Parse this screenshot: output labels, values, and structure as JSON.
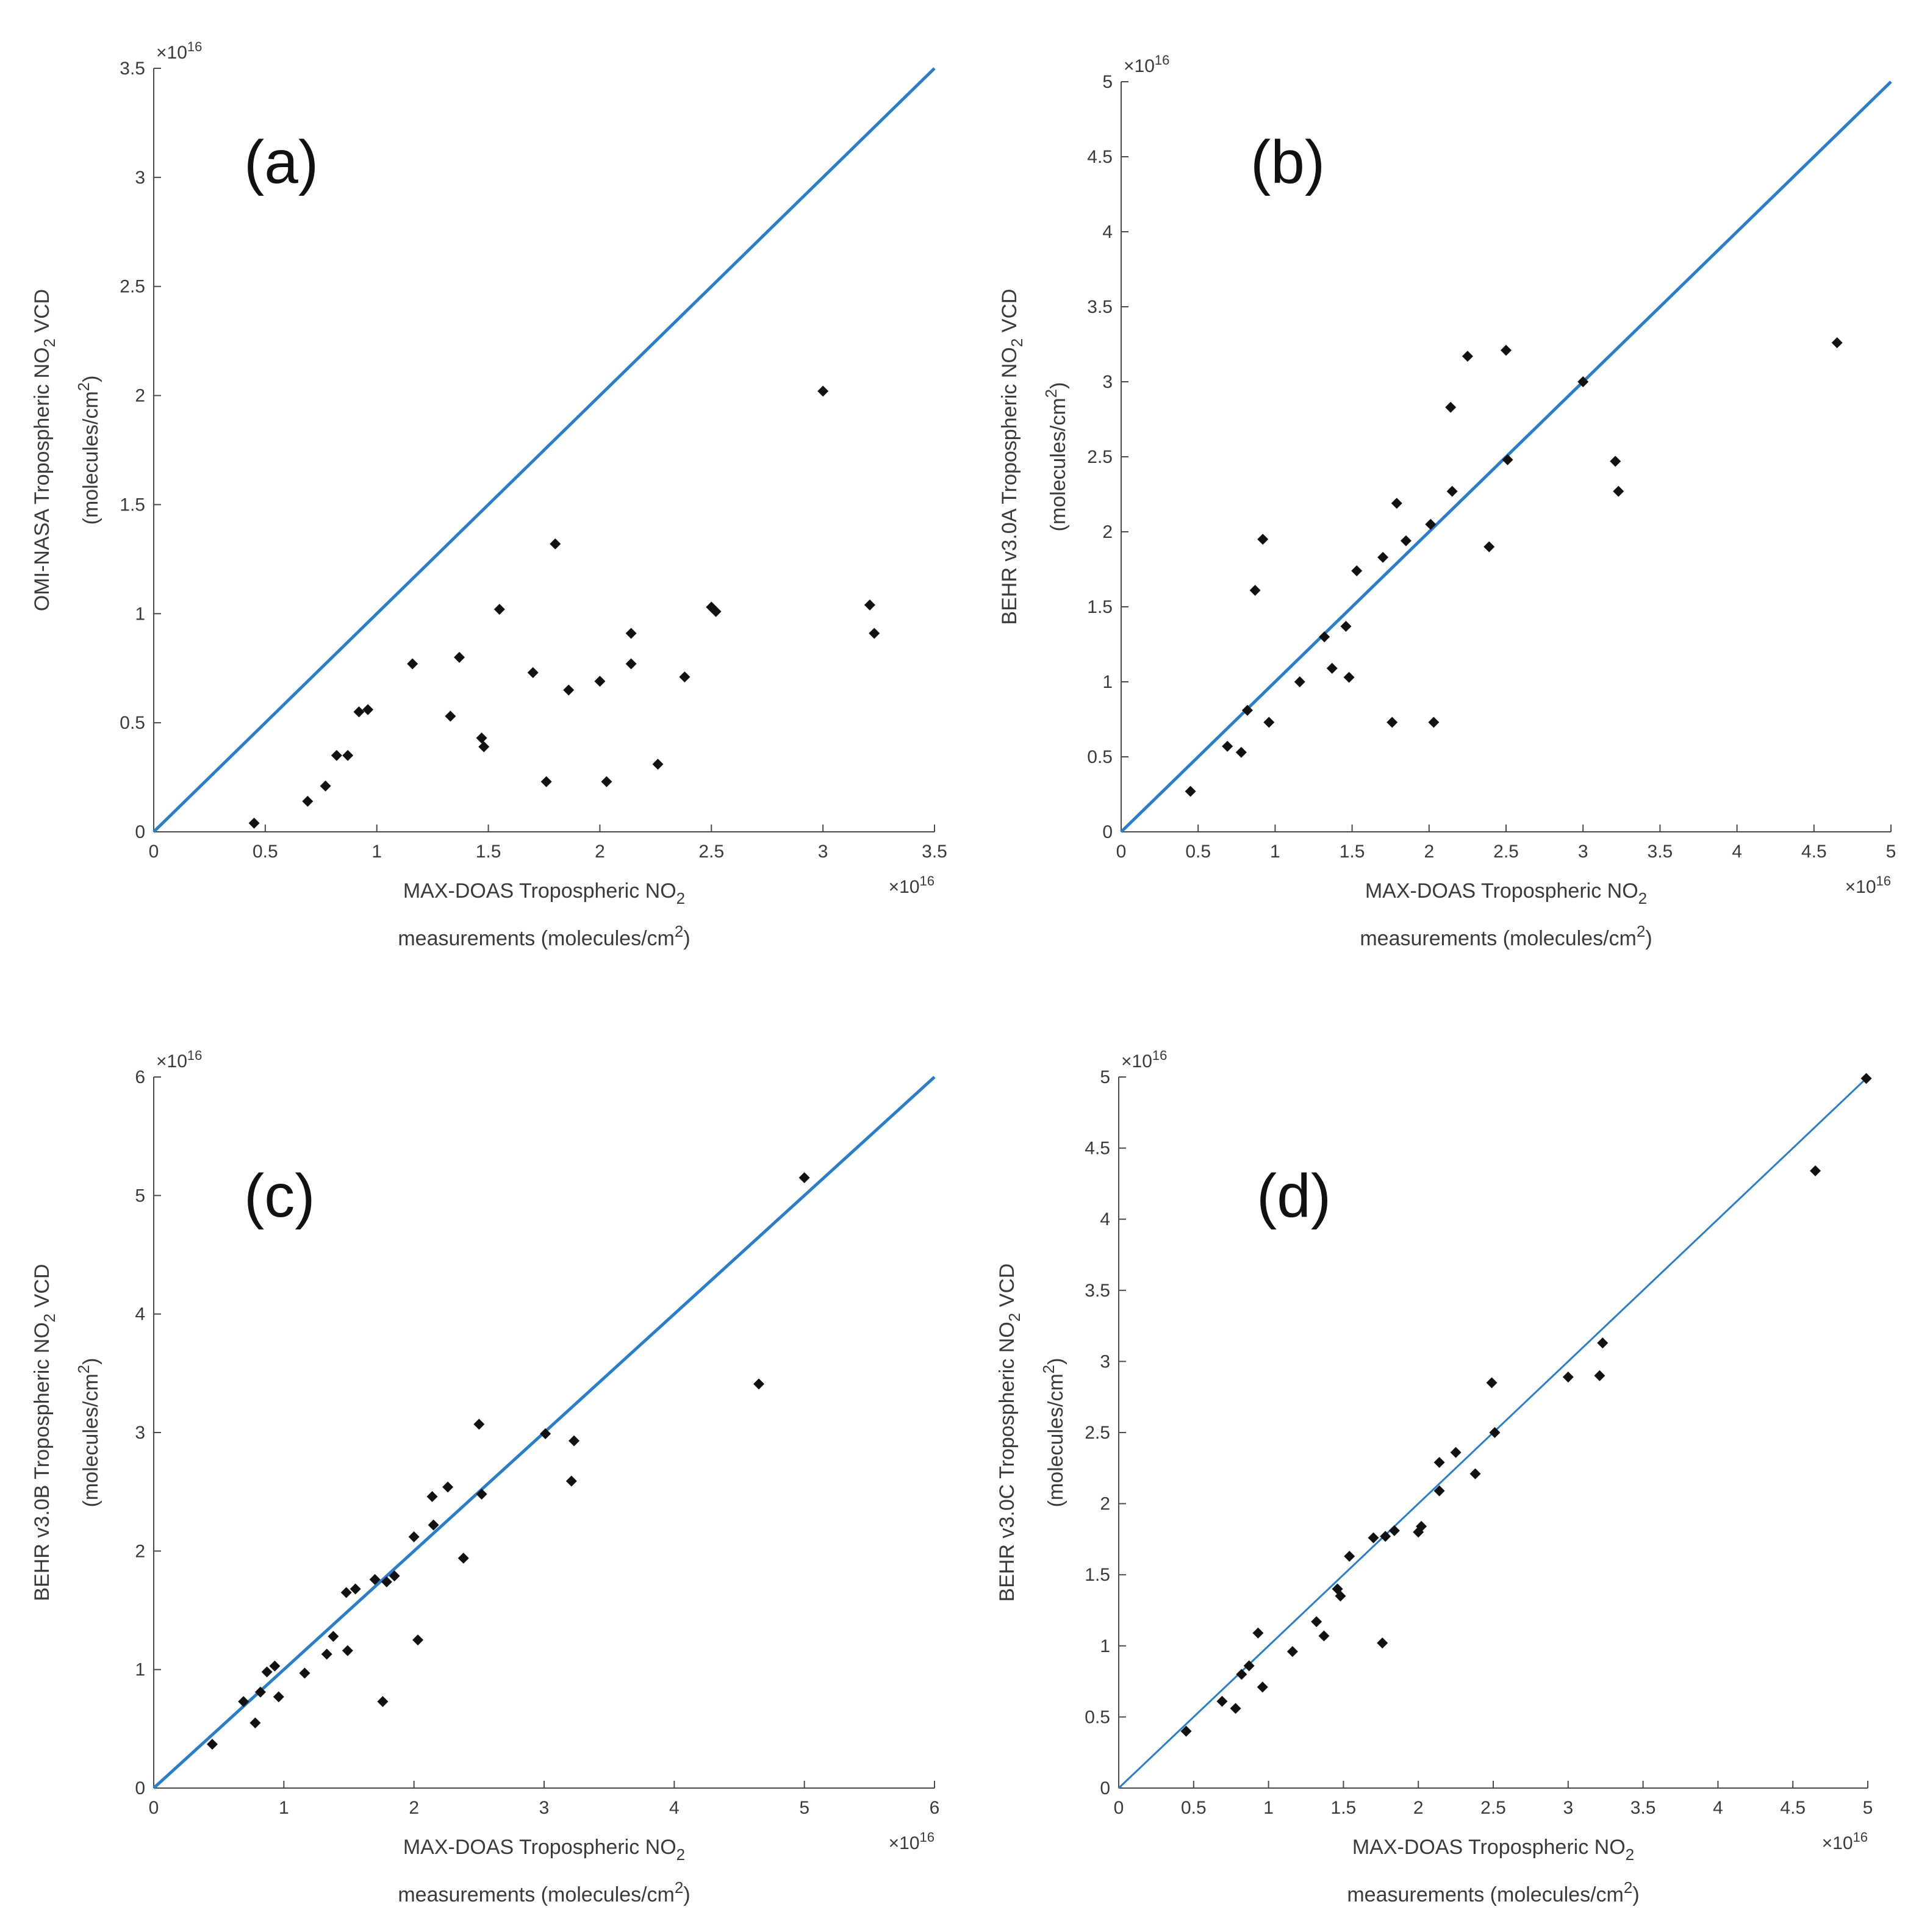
{
  "colors": {
    "identity_line": "#2a7dc9",
    "points": "#111111",
    "axis": "#4a4a4a",
    "text": "#3a3a3a"
  },
  "chart_data": [
    {
      "type": "scatter",
      "panel_label": "(a)",
      "xlabel_line1": "MAX-DOAS Tropospheric NO",
      "xlabel_line1_sub": "2",
      "xlabel_line2": "measurements (molecules/cm",
      "xlabel_line2_sup": "2",
      "xlabel_line2_end": ")",
      "ylabel_line1": "OMI-NASA Tropospheric NO",
      "ylabel_line1_sub": "2",
      "ylabel_line1_end": " VCD",
      "ylabel_line2": "(molecules/cm",
      "ylabel_line2_sup": "2",
      "ylabel_line2_end": ")",
      "x_exponent_base": "×10",
      "x_exponent_power": "16",
      "y_exponent_base": "×10",
      "y_exponent_power": "16",
      "xlim": [
        0,
        3.5
      ],
      "ylim": [
        0,
        3.5
      ],
      "xticks": [
        "0",
        "0.5",
        "1",
        "1.5",
        "2",
        "2.5",
        "3",
        "3.5"
      ],
      "yticks": [
        "0",
        "0.5",
        "1",
        "1.5",
        "2",
        "2.5",
        "3",
        "3.5"
      ],
      "identity_line": [
        0,
        3.5
      ],
      "points": [
        [
          0.45,
          0.04
        ],
        [
          0.69,
          0.14
        ],
        [
          0.77,
          0.21
        ],
        [
          0.82,
          0.35
        ],
        [
          0.87,
          0.35
        ],
        [
          0.92,
          0.55
        ],
        [
          0.96,
          0.56
        ],
        [
          1.16,
          0.77
        ],
        [
          1.33,
          0.53
        ],
        [
          1.37,
          0.8
        ],
        [
          1.47,
          0.43
        ],
        [
          1.48,
          0.39
        ],
        [
          1.55,
          1.02
        ],
        [
          1.7,
          0.73
        ],
        [
          1.76,
          0.23
        ],
        [
          1.8,
          1.32
        ],
        [
          1.86,
          0.65
        ],
        [
          2.0,
          0.69
        ],
        [
          2.03,
          0.23
        ],
        [
          2.14,
          0.91
        ],
        [
          2.14,
          0.77
        ],
        [
          2.26,
          0.31
        ],
        [
          2.38,
          0.71
        ],
        [
          2.5,
          1.03
        ],
        [
          2.52,
          1.01
        ],
        [
          3.0,
          2.02
        ],
        [
          3.21,
          1.04
        ],
        [
          3.23,
          0.91
        ]
      ]
    },
    {
      "type": "scatter",
      "panel_label": "(b)",
      "xlabel_line1": "MAX-DOAS Tropospheric NO",
      "xlabel_line1_sub": "2",
      "xlabel_line2": "measurements (molecules/cm",
      "xlabel_line2_sup": "2",
      "xlabel_line2_end": ")",
      "ylabel_line1": "BEHR v3.0A Tropospheric NO",
      "ylabel_line1_sub": "2",
      "ylabel_line1_end": " VCD",
      "ylabel_line2": "(molecules/cm",
      "ylabel_line2_sup": "2",
      "ylabel_line2_end": ")",
      "x_exponent_base": "×10",
      "x_exponent_power": "16",
      "y_exponent_base": "×10",
      "y_exponent_power": "16",
      "xlim": [
        0,
        5
      ],
      "ylim": [
        0,
        5
      ],
      "xticks": [
        "0",
        "0.5",
        "1",
        "1.5",
        "2",
        "2.5",
        "3",
        "3.5",
        "4",
        "4.5",
        "5"
      ],
      "yticks": [
        "0",
        "0.5",
        "1",
        "1.5",
        "2",
        "2.5",
        "3",
        "3.5",
        "4",
        "4.5",
        "5"
      ],
      "identity_line": [
        0,
        5
      ],
      "points": [
        [
          0.45,
          0.27
        ],
        [
          0.69,
          0.57
        ],
        [
          0.78,
          0.53
        ],
        [
          0.82,
          0.81
        ],
        [
          0.87,
          1.61
        ],
        [
          0.92,
          1.95
        ],
        [
          0.96,
          0.73
        ],
        [
          1.16,
          1.0
        ],
        [
          1.32,
          1.3
        ],
        [
          1.37,
          1.09
        ],
        [
          1.46,
          1.37
        ],
        [
          1.48,
          1.03
        ],
        [
          1.53,
          1.74
        ],
        [
          1.7,
          1.83
        ],
        [
          1.76,
          0.73
        ],
        [
          1.79,
          2.19
        ],
        [
          1.85,
          1.94
        ],
        [
          2.01,
          2.05
        ],
        [
          2.03,
          0.73
        ],
        [
          2.14,
          2.83
        ],
        [
          2.15,
          2.27
        ],
        [
          2.25,
          3.17
        ],
        [
          2.39,
          1.9
        ],
        [
          2.5,
          3.21
        ],
        [
          2.51,
          2.48
        ],
        [
          3.0,
          3.0
        ],
        [
          3.21,
          2.47
        ],
        [
          3.23,
          2.27
        ],
        [
          4.65,
          3.26
        ]
      ]
    },
    {
      "type": "scatter",
      "panel_label": "(c)",
      "xlabel_line1": "MAX-DOAS Tropospheric NO",
      "xlabel_line1_sub": "2",
      "xlabel_line2": "measurements (molecules/cm",
      "xlabel_line2_sup": "2",
      "xlabel_line2_end": ")",
      "ylabel_line1": "BEHR v3.0B Tropospheric NO",
      "ylabel_line1_sub": "2",
      "ylabel_line1_end": " VCD",
      "ylabel_line2": "(molecules/cm",
      "ylabel_line2_sup": "2",
      "ylabel_line2_end": ")",
      "x_exponent_base": "×10",
      "x_exponent_power": "16",
      "y_exponent_base": "×10",
      "y_exponent_power": "16",
      "xlim": [
        0,
        6
      ],
      "ylim": [
        0,
        6
      ],
      "xticks": [
        "0",
        "1",
        "2",
        "3",
        "4",
        "5",
        "6"
      ],
      "yticks": [
        "0",
        "1",
        "2",
        "3",
        "4",
        "5",
        "6"
      ],
      "identity_line": [
        0,
        6
      ],
      "points": [
        [
          0.45,
          0.37
        ],
        [
          0.69,
          0.73
        ],
        [
          0.78,
          0.55
        ],
        [
          0.82,
          0.81
        ],
        [
          0.87,
          0.98
        ],
        [
          0.93,
          1.03
        ],
        [
          0.96,
          0.77
        ],
        [
          1.16,
          0.97
        ],
        [
          1.33,
          1.13
        ],
        [
          1.38,
          1.28
        ],
        [
          1.48,
          1.65
        ],
        [
          1.49,
          1.16
        ],
        [
          1.55,
          1.68
        ],
        [
          1.7,
          1.76
        ],
        [
          1.76,
          0.73
        ],
        [
          1.79,
          1.74
        ],
        [
          1.85,
          1.79
        ],
        [
          2.0,
          2.12
        ],
        [
          2.03,
          1.25
        ],
        [
          2.14,
          2.46
        ],
        [
          2.15,
          2.22
        ],
        [
          2.26,
          2.54
        ],
        [
          2.38,
          1.94
        ],
        [
          2.5,
          3.07
        ],
        [
          2.52,
          2.48
        ],
        [
          3.01,
          2.99
        ],
        [
          3.21,
          2.59
        ],
        [
          3.23,
          2.93
        ],
        [
          4.65,
          3.41
        ],
        [
          5.0,
          5.15
        ]
      ]
    },
    {
      "type": "scatter",
      "panel_label": "(d)",
      "xlabel_line1": "MAX-DOAS Tropospheric NO",
      "xlabel_line1_sub": "2",
      "xlabel_line2": "measurements (molecules/cm",
      "xlabel_line2_sup": "2",
      "xlabel_line2_end": ")",
      "ylabel_line1": "BEHR v3.0C Tropospheric NO",
      "ylabel_line1_sub": "2",
      "ylabel_line1_end": " VCD",
      "ylabel_line2": "(molecules/cm",
      "ylabel_line2_sup": "2",
      "ylabel_line2_end": ")",
      "x_exponent_base": "×10",
      "x_exponent_power": "16",
      "y_exponent_base": "×10",
      "y_exponent_power": "16",
      "xlim": [
        0,
        5
      ],
      "ylim": [
        0,
        5
      ],
      "xticks": [
        "0",
        "0.5",
        "1",
        "1.5",
        "2",
        "2.5",
        "3",
        "3.5",
        "4",
        "4.5",
        "5"
      ],
      "yticks": [
        "0",
        "0.5",
        "1",
        "1.5",
        "2",
        "2.5",
        "3",
        "3.5",
        "4",
        "4.5",
        "5"
      ],
      "identity_line": [
        0,
        5
      ],
      "points": [
        [
          0.45,
          0.4
        ],
        [
          0.69,
          0.61
        ],
        [
          0.78,
          0.56
        ],
        [
          0.82,
          0.8
        ],
        [
          0.87,
          0.86
        ],
        [
          0.93,
          1.09
        ],
        [
          0.96,
          0.71
        ],
        [
          1.16,
          0.96
        ],
        [
          1.32,
          1.17
        ],
        [
          1.37,
          1.07
        ],
        [
          1.46,
          1.4
        ],
        [
          1.48,
          1.35
        ],
        [
          1.54,
          1.63
        ],
        [
          1.7,
          1.76
        ],
        [
          1.76,
          1.02
        ],
        [
          1.78,
          1.77
        ],
        [
          1.84,
          1.81
        ],
        [
          2.0,
          1.8
        ],
        [
          2.02,
          1.84
        ],
        [
          2.14,
          2.09
        ],
        [
          2.14,
          2.29
        ],
        [
          2.25,
          2.36
        ],
        [
          2.38,
          2.21
        ],
        [
          2.49,
          2.85
        ],
        [
          2.51,
          2.5
        ],
        [
          3.0,
          2.89
        ],
        [
          3.21,
          2.9
        ],
        [
          3.23,
          3.13
        ],
        [
          4.65,
          4.34
        ],
        [
          4.99,
          4.99
        ]
      ]
    }
  ]
}
